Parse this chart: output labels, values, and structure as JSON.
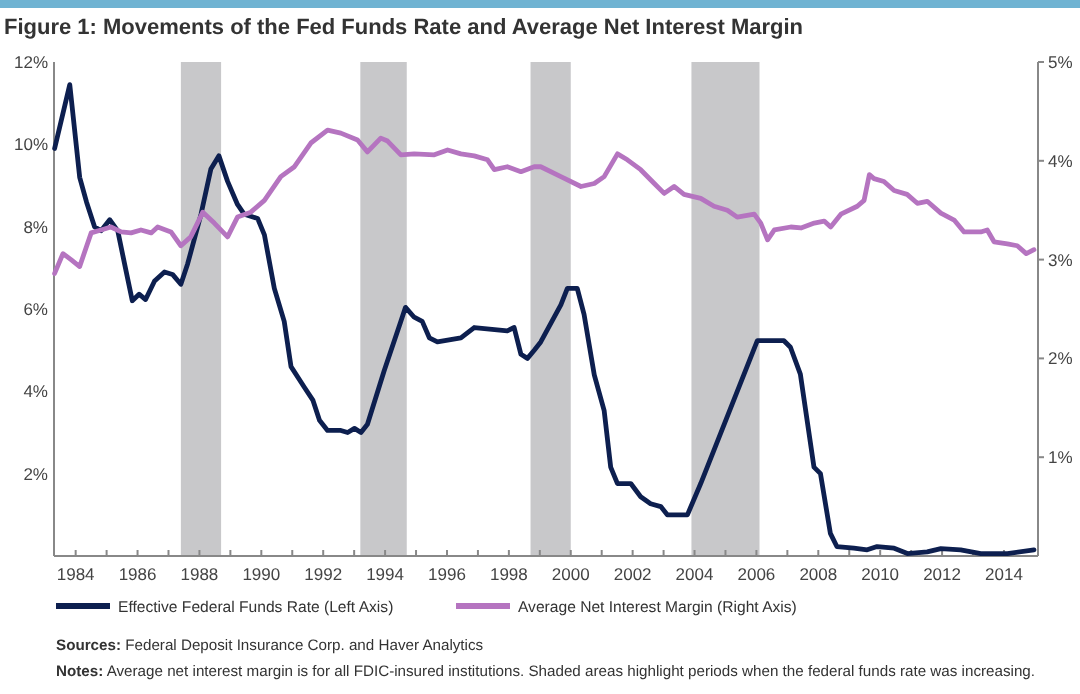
{
  "chart_data": {
    "type": "line",
    "title": "Figure 1: Movements of the Fed Funds Rate and Average Net Interest Margin",
    "xlim": [
      1983.3,
      2015.1
    ],
    "xticks": [
      1984,
      {
        "value": 1985,
        "label": null
      },
      1986,
      {
        "value": 1987,
        "label": null
      },
      1988,
      {
        "value": 1989,
        "label": null
      },
      1990,
      {
        "value": 1991,
        "label": null
      },
      1992,
      {
        "value": 1993,
        "label": null
      },
      1994,
      {
        "value": 1995,
        "label": null
      },
      1996,
      {
        "value": 1997,
        "label": null
      },
      1998,
      {
        "value": 1999,
        "label": null
      },
      2000,
      {
        "value": 2001,
        "label": null
      },
      2002,
      {
        "value": 2003,
        "label": null
      },
      2004,
      {
        "value": 2005,
        "label": null
      },
      2006,
      {
        "value": 2007,
        "label": null
      },
      2008,
      {
        "value": 2009,
        "label": null
      },
      2010,
      {
        "value": 2011,
        "label": null
      },
      2012,
      {
        "value": 2013,
        "label": null
      },
      2014
    ],
    "ylim": [
      0,
      12
    ],
    "yticks": [
      {
        "value": 2,
        "label": "2%"
      },
      {
        "value": 4,
        "label": "4%"
      },
      {
        "value": 6,
        "label": "6%"
      },
      {
        "value": 8,
        "label": "8%"
      },
      {
        "value": 10,
        "label": "10%"
      },
      {
        "value": 12,
        "label": "12%"
      }
    ],
    "y2lim": [
      0,
      5
    ],
    "y2ticks": [
      {
        "value": 1,
        "label": "1%"
      },
      {
        "value": 2,
        "label": "2%"
      },
      {
        "value": 3,
        "label": "3%"
      },
      {
        "value": 4,
        "label": "4%"
      },
      {
        "value": 5,
        "label": "5%"
      }
    ],
    "bands": [
      {
        "axis": "x",
        "from": 1987.4,
        "to": 1988.7,
        "color": "#c8c8ca"
      },
      {
        "axis": "x",
        "from": 1993.2,
        "to": 1994.7,
        "color": "#c8c8ca"
      },
      {
        "axis": "x",
        "from": 1998.7,
        "to": 2000.0,
        "color": "#c8c8ca"
      },
      {
        "axis": "x",
        "from": 2003.9,
        "to": 2006.1,
        "color": "#c8c8ca"
      }
    ],
    "series": [
      {
        "name": "Effective Federal Funds Rate (Left Axis)",
        "color": "#0d1f4f",
        "x": [
          1983.32,
          1983.81,
          1984.13,
          1984.35,
          1984.61,
          1984.82,
          1985.1,
          1985.36,
          1985.58,
          1985.83,
          1986.05,
          1986.26,
          1986.55,
          1986.87,
          1987.13,
          1987.4,
          1987.62,
          1988.05,
          1988.37,
          1988.63,
          1988.91,
          1989.23,
          1989.45,
          1989.88,
          1990.1,
          1990.42,
          1990.74,
          1990.96,
          1991.39,
          1991.67,
          1991.88,
          1992.14,
          1992.57,
          1992.79,
          1993.01,
          1993.22,
          1993.43,
          1993.97,
          1994.51,
          1994.66,
          1994.94,
          1995.2,
          1995.43,
          1995.69,
          1996.45,
          1996.88,
          1997.95,
          1998.17,
          1998.39,
          1998.6,
          1998.82,
          1999.03,
          1999.68,
          1999.89,
          2000.21,
          2000.43,
          2000.76,
          2001.08,
          2001.29,
          2001.51,
          2001.94,
          2002.26,
          2002.58,
          2002.91,
          2003.12,
          2003.77,
          2004.2,
          2006.03,
          2006.89,
          2007.1,
          2007.42,
          2007.86,
          2008.07,
          2008.39,
          2008.6,
          2009.15,
          2009.58,
          2009.9,
          2010.45,
          2010.88,
          2011.52,
          2011.96,
          2012.6,
          2013.25,
          2014.11,
          2014.97
        ],
        "values": [
          9.9,
          11.45,
          9.2,
          8.6,
          8.0,
          7.9,
          8.17,
          7.9,
          7.1,
          6.2,
          6.36,
          6.23,
          6.68,
          6.9,
          6.84,
          6.6,
          7.1,
          8.3,
          9.4,
          9.72,
          9.1,
          8.54,
          8.3,
          8.2,
          7.8,
          6.5,
          5.7,
          4.6,
          4.1,
          3.78,
          3.3,
          3.05,
          3.05,
          3.0,
          3.1,
          3.0,
          3.2,
          4.5,
          5.7,
          6.04,
          5.8,
          5.7,
          5.3,
          5.2,
          5.3,
          5.55,
          5.47,
          5.55,
          4.9,
          4.8,
          5.0,
          5.2,
          6.1,
          6.5,
          6.5,
          5.87,
          4.4,
          3.53,
          2.16,
          1.76,
          1.76,
          1.44,
          1.27,
          1.2,
          1.0,
          1.0,
          1.76,
          5.23,
          5.23,
          5.07,
          4.42,
          2.16,
          2.0,
          0.55,
          0.23,
          0.19,
          0.15,
          0.23,
          0.19,
          0.06,
          0.1,
          0.18,
          0.15,
          0.06,
          0.06,
          0.15
        ]
      },
      {
        "name": "Average Net Interest Margin (Right Axis)",
        "color": "#b574c0",
        "axis": "y2",
        "x": [
          1983.32,
          1983.59,
          1983.85,
          1984.13,
          1984.5,
          1984.82,
          1985.14,
          1985.47,
          1985.79,
          1986.11,
          1986.44,
          1986.65,
          1987.08,
          1987.4,
          1987.72,
          1988.11,
          1988.48,
          1988.91,
          1989.23,
          1989.66,
          1990.1,
          1990.63,
          1991.07,
          1991.6,
          1992.14,
          1992.57,
          1993.11,
          1993.43,
          1993.86,
          1994.08,
          1994.51,
          1994.94,
          1995.59,
          1996.02,
          1996.45,
          1996.88,
          1997.31,
          1997.53,
          1997.95,
          1998.39,
          1998.82,
          1999.03,
          1999.68,
          2000.33,
          2000.76,
          2001.08,
          2001.51,
          2001.83,
          2002.26,
          2002.7,
          2003.02,
          2003.34,
          2003.66,
          2004.2,
          2004.63,
          2005.06,
          2005.38,
          2005.93,
          2006.14,
          2006.36,
          2006.58,
          2007.11,
          2007.44,
          2007.87,
          2008.19,
          2008.4,
          2008.73,
          2009.26,
          2009.48,
          2009.65,
          2009.8,
          2010.12,
          2010.45,
          2010.87,
          2011.2,
          2011.52,
          2011.96,
          2012.39,
          2012.71,
          2013.25,
          2013.46,
          2013.68,
          2014.11,
          2014.43,
          2014.72,
          2014.97
        ],
        "values": [
          2.86,
          3.06,
          3.0,
          2.93,
          3.27,
          3.3,
          3.33,
          3.28,
          3.27,
          3.3,
          3.27,
          3.33,
          3.28,
          3.14,
          3.23,
          3.48,
          3.37,
          3.23,
          3.43,
          3.48,
          3.6,
          3.84,
          3.94,
          4.18,
          4.31,
          4.28,
          4.21,
          4.09,
          4.23,
          4.2,
          4.06,
          4.07,
          4.06,
          4.11,
          4.07,
          4.05,
          4.01,
          3.91,
          3.94,
          3.89,
          3.94,
          3.94,
          3.84,
          3.74,
          3.77,
          3.84,
          4.07,
          4.01,
          3.91,
          3.77,
          3.67,
          3.74,
          3.66,
          3.62,
          3.54,
          3.5,
          3.43,
          3.46,
          3.37,
          3.2,
          3.3,
          3.33,
          3.32,
          3.37,
          3.39,
          3.33,
          3.46,
          3.54,
          3.6,
          3.86,
          3.82,
          3.79,
          3.7,
          3.66,
          3.57,
          3.59,
          3.47,
          3.4,
          3.28,
          3.28,
          3.3,
          3.18,
          3.16,
          3.14,
          3.06,
          3.1
        ]
      }
    ],
    "legend": "bottom",
    "annotations": [
      "Sources: Federal Deposit Insurance Corp. and Haver Analytics",
      "Notes: Average net interest margin is for all FDIC-insured institutions. Shaded areas highlight periods when the federal funds rate was increasing."
    ]
  }
}
